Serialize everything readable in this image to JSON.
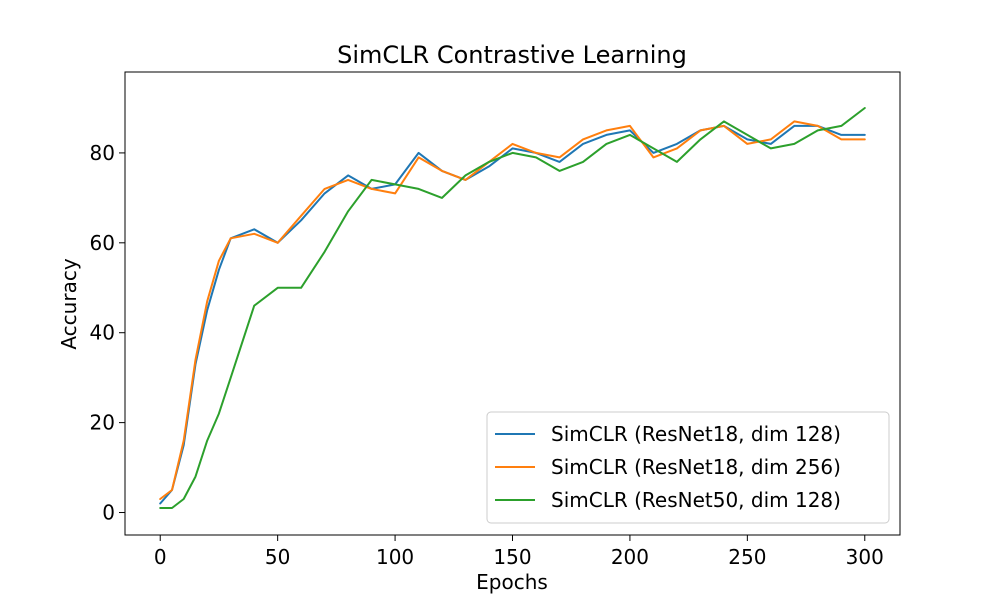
{
  "chart_data": {
    "type": "line",
    "title": "SimCLR Contrastive Learning",
    "xlabel": "Epochs",
    "ylabel": "Accuracy",
    "xlim": [
      -15,
      315
    ],
    "ylim": [
      -5,
      98
    ],
    "xticks": [
      0,
      50,
      100,
      150,
      200,
      250,
      300
    ],
    "yticks": [
      0,
      20,
      40,
      60,
      80
    ],
    "grid": false,
    "legend_position": "lower-right",
    "x": [
      0,
      5,
      10,
      15,
      20,
      25,
      30,
      40,
      50,
      60,
      70,
      80,
      90,
      100,
      110,
      120,
      130,
      140,
      150,
      160,
      170,
      180,
      190,
      200,
      210,
      220,
      230,
      240,
      250,
      260,
      270,
      280,
      290,
      300
    ],
    "series": [
      {
        "name": "SimCLR (ResNet18, dim 128)",
        "color": "#1f77b4",
        "values": [
          2,
          5,
          15,
          33,
          45,
          54,
          61,
          63,
          60,
          65,
          71,
          75,
          72,
          73,
          80,
          76,
          74,
          77,
          81,
          80,
          78,
          82,
          84,
          85,
          80,
          82,
          85,
          86,
          83,
          82,
          86,
          86,
          84,
          84
        ]
      },
      {
        "name": "SimCLR (ResNet18, dim 256)",
        "color": "#ff7f0e",
        "values": [
          3,
          5,
          16,
          34,
          47,
          56,
          61,
          62,
          60,
          66,
          72,
          74,
          72,
          71,
          79,
          76,
          74,
          78,
          82,
          80,
          79,
          83,
          85,
          86,
          79,
          81,
          85,
          86,
          82,
          83,
          87,
          86,
          83,
          83
        ]
      },
      {
        "name": "SimCLR (ResNet50, dim 128)",
        "color": "#2ca02c",
        "values": [
          1,
          1,
          3,
          8,
          16,
          22,
          30,
          46,
          50,
          50,
          58,
          67,
          74,
          73,
          72,
          70,
          75,
          78,
          80,
          79,
          76,
          78,
          82,
          84,
          81,
          78,
          83,
          87,
          84,
          81,
          82,
          85,
          86,
          90
        ]
      }
    ]
  }
}
